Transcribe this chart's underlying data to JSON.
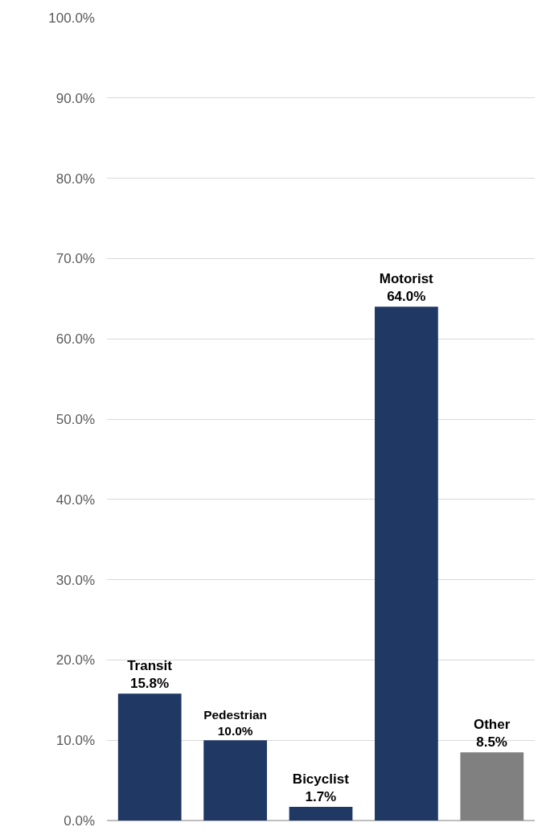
{
  "chart_data": {
    "type": "bar",
    "categories": [
      "Transit",
      "Pedestrian",
      "Bicyclist",
      "Motorist",
      "Other"
    ],
    "values": [
      15.8,
      10.0,
      1.7,
      64.0,
      8.5
    ],
    "value_labels": [
      "15.8%",
      "10.0%",
      "1.7%",
      "64.0%",
      "8.5%"
    ],
    "colors": [
      "#1f3864",
      "#1f3864",
      "#1f3864",
      "#1f3864",
      "#808080"
    ],
    "ylim": [
      0,
      100
    ],
    "yticks": [
      {
        "value": 0,
        "label": "0.0%"
      },
      {
        "value": 10,
        "label": "10.0%"
      },
      {
        "value": 20,
        "label": "20.0%"
      },
      {
        "value": 30,
        "label": "30.0%"
      },
      {
        "value": 40,
        "label": "40.0%"
      },
      {
        "value": 50,
        "label": "50.0%"
      },
      {
        "value": 60,
        "label": "60.0%"
      },
      {
        "value": 70,
        "label": "70.0%"
      },
      {
        "value": 80,
        "label": "80.0%"
      },
      {
        "value": 90,
        "label": "90.0%"
      },
      {
        "value": 100,
        "label": "100.0%"
      }
    ],
    "grid": "y",
    "legend": false,
    "tick_labels": "y"
  }
}
